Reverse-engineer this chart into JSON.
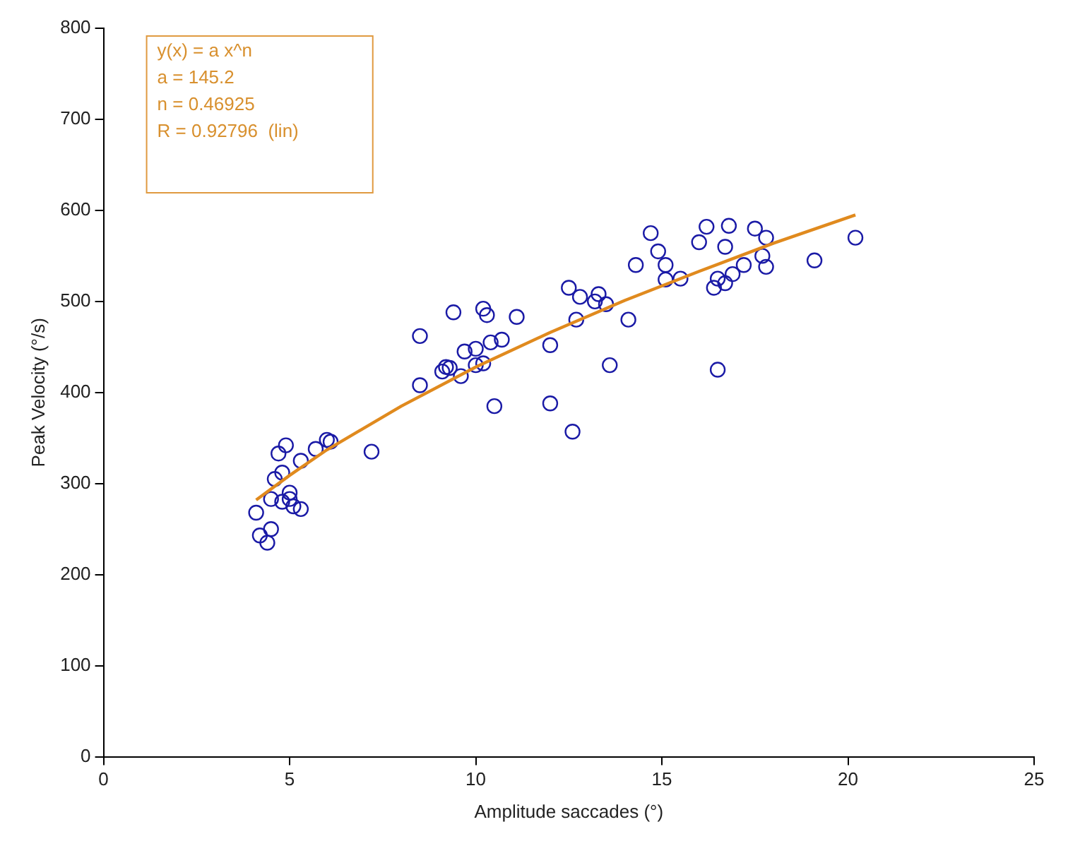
{
  "chart_data": {
    "type": "scatter",
    "xlabel": "Amplitude saccades (°)",
    "ylabel": "Peak Velocity (°/s)",
    "xlim": [
      0,
      25
    ],
    "xticks": [
      0,
      5,
      10,
      15,
      20,
      25
    ],
    "ylim": [
      0,
      800
    ],
    "yticks": [
      0,
      100,
      200,
      300,
      400,
      500,
      600,
      700,
      800
    ],
    "grid": false,
    "legend": false,
    "marker": "circle",
    "annotations": [
      "y(x) = a x^n",
      "a = 145.2",
      "n = 0.46925",
      "R = 0.92796  (lin)"
    ],
    "series": [
      {
        "color": "#1a1aa6",
        "x": [
          4.1,
          4.2,
          4.4,
          4.5,
          4.5,
          4.6,
          4.7,
          4.8,
          4.9,
          4.8,
          5.0,
          5.0,
          5.1,
          5.3,
          5.3,
          5.7,
          6.0,
          6.1,
          7.2,
          8.5,
          8.5,
          9.1,
          9.2,
          9.3,
          9.4,
          9.6,
          9.7,
          10.0,
          10.0,
          10.2,
          10.3,
          10.2,
          10.4,
          10.5,
          10.7,
          11.1,
          12.0,
          12.0,
          12.5,
          12.6,
          12.7,
          12.8,
          13.2,
          13.3,
          13.5,
          13.6,
          14.1,
          14.3,
          14.7,
          14.9,
          15.1,
          15.1,
          15.5,
          16.0,
          16.2,
          16.4,
          16.5,
          16.5,
          16.7,
          16.7,
          16.8,
          16.9,
          17.2,
          17.5,
          17.7,
          17.8,
          17.8,
          19.1,
          20.2
        ],
        "values": [
          268,
          243,
          235,
          250,
          283,
          305,
          333,
          312,
          342,
          280,
          290,
          283,
          275,
          272,
          325,
          338,
          348,
          346,
          335,
          462,
          408,
          423,
          428,
          427,
          488,
          418,
          445,
          448,
          430,
          492,
          485,
          432,
          455,
          385,
          458,
          483,
          388,
          452,
          515,
          357,
          480,
          505,
          500,
          508,
          497,
          430,
          480,
          540,
          575,
          555,
          540,
          524,
          525,
          565,
          582,
          515,
          525,
          425,
          520,
          560,
          583,
          530,
          540,
          580,
          550,
          570,
          538,
          545,
          570
        ]
      },
      {
        "type": "line",
        "color": "#e08a1e",
        "line_style": "solid",
        "marker": "none",
        "x": [
          4.1,
          5,
          6,
          8,
          10,
          12,
          14,
          16,
          18,
          20.2
        ],
        "values": [
          282,
          309,
          337,
          385,
          428,
          466,
          501,
          533,
          564,
          595
        ]
      }
    ]
  }
}
